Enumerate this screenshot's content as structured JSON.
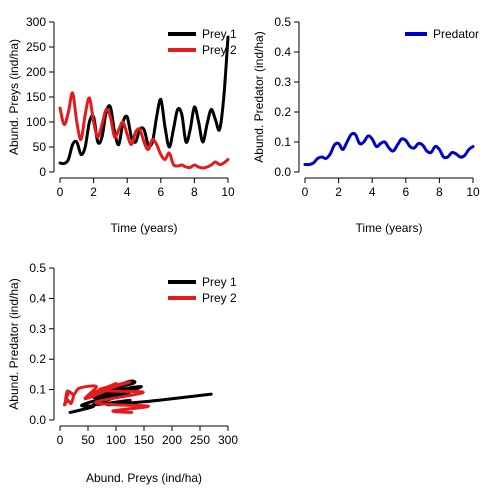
{
  "chart_data": [
    {
      "type": "line",
      "xlabel": "Time (years)",
      "ylabel": "Abund. Preys (ind/ha)",
      "xlim": [
        0,
        10
      ],
      "ylim": [
        0,
        300
      ],
      "x_ticks": [
        "0",
        "2",
        "4",
        "6",
        "8",
        "10"
      ],
      "y_ticks": [
        "0",
        "50",
        "100",
        "150",
        "200",
        "250",
        "300"
      ],
      "legend_position": "top-right",
      "series": [
        {
          "name": "Prey 1",
          "color": "#000000",
          "x": [
            0,
            0.25,
            0.5,
            0.75,
            1,
            1.25,
            1.5,
            1.75,
            2,
            2.25,
            2.5,
            2.75,
            3,
            3.25,
            3.5,
            3.75,
            4,
            4.25,
            4.5,
            4.75,
            5,
            5.25,
            5.5,
            5.75,
            6,
            6.25,
            6.5,
            6.75,
            7,
            7.25,
            7.5,
            7.75,
            8,
            8.25,
            8.5,
            8.75,
            9,
            9.25,
            9.5,
            9.75,
            10
          ],
          "y": [
            18,
            17,
            25,
            55,
            60,
            35,
            50,
            100,
            110,
            60,
            70,
            120,
            130,
            80,
            55,
            100,
            110,
            70,
            60,
            85,
            85,
            55,
            60,
            110,
            145,
            90,
            50,
            85,
            125,
            115,
            60,
            85,
            130,
            100,
            60,
            95,
            125,
            105,
            85,
            150,
            270
          ]
        },
        {
          "name": "Prey 2",
          "color": "#e41a1c",
          "x": [
            0,
            0.25,
            0.5,
            0.75,
            1,
            1.25,
            1.5,
            1.75,
            2,
            2.25,
            2.5,
            2.75,
            3,
            3.25,
            3.5,
            3.75,
            4,
            4.25,
            4.5,
            4.75,
            5,
            5.25,
            5.5,
            5.75,
            6,
            6.25,
            6.5,
            6.75,
            7,
            7.25,
            7.5,
            7.75,
            8,
            8.25,
            8.5,
            8.75,
            9,
            9.25,
            9.5,
            9.75,
            10
          ],
          "y": [
            128,
            95,
            120,
            158,
            100,
            65,
            115,
            148,
            100,
            70,
            95,
            125,
            110,
            70,
            85,
            100,
            75,
            55,
            80,
            85,
            60,
            45,
            65,
            55,
            35,
            25,
            38,
            15,
            12,
            14,
            10,
            9,
            14,
            10,
            8,
            10,
            14,
            20,
            15,
            18,
            25
          ]
        }
      ]
    },
    {
      "type": "line",
      "xlabel": "Time (years)",
      "ylabel": "Abund. Predator (ind/ha)",
      "xlim": [
        0,
        10
      ],
      "ylim": [
        0,
        0.5
      ],
      "x_ticks": [
        "0",
        "2",
        "4",
        "6",
        "8",
        "10"
      ],
      "y_ticks": [
        "0.0",
        "0.1",
        "0.2",
        "0.3",
        "0.4",
        "0.5"
      ],
      "legend_position": "top-right",
      "series": [
        {
          "name": "Predator",
          "color": "#0000cd",
          "x": [
            0,
            0.25,
            0.5,
            0.75,
            1,
            1.25,
            1.5,
            1.75,
            2,
            2.25,
            2.5,
            2.75,
            3,
            3.25,
            3.5,
            3.75,
            4,
            4.25,
            4.5,
            4.75,
            5,
            5.25,
            5.5,
            5.75,
            6,
            6.25,
            6.5,
            6.75,
            7,
            7.25,
            7.5,
            7.75,
            8,
            8.25,
            8.5,
            8.75,
            9,
            9.25,
            9.5,
            9.75,
            10
          ],
          "y": [
            0.025,
            0.025,
            0.03,
            0.045,
            0.05,
            0.045,
            0.06,
            0.09,
            0.095,
            0.075,
            0.1,
            0.125,
            0.125,
            0.095,
            0.1,
            0.12,
            0.11,
            0.085,
            0.095,
            0.1,
            0.08,
            0.07,
            0.09,
            0.11,
            0.105,
            0.085,
            0.08,
            0.095,
            0.09,
            0.07,
            0.065,
            0.085,
            0.075,
            0.05,
            0.05,
            0.065,
            0.06,
            0.05,
            0.055,
            0.075,
            0.085
          ]
        }
      ]
    },
    {
      "type": "line",
      "xlabel": "Abund. Preys (ind/ha)",
      "ylabel": "Abund. Predator (ind/ha)",
      "xlim": [
        0,
        300
      ],
      "ylim": [
        0,
        0.5
      ],
      "x_ticks": [
        "0",
        "50",
        "100",
        "150",
        "200",
        "250",
        "300"
      ],
      "y_ticks": [
        "0.0",
        "0.1",
        "0.2",
        "0.3",
        "0.4",
        "0.5"
      ],
      "legend_position": "top-right",
      "series": [
        {
          "name": "Prey 1",
          "color": "#000000",
          "x": [
            18,
            30,
            60,
            40,
            110,
            60,
            120,
            130,
            70,
            110,
            60,
            85,
            55,
            110,
            145,
            90,
            60,
            125,
            100,
            60,
            125,
            85,
            150,
            200,
            270
          ],
          "y": [
            0.025,
            0.03,
            0.045,
            0.05,
            0.09,
            0.075,
            0.125,
            0.12,
            0.095,
            0.11,
            0.085,
            0.1,
            0.08,
            0.09,
            0.11,
            0.095,
            0.08,
            0.095,
            0.075,
            0.05,
            0.065,
            0.05,
            0.06,
            0.07,
            0.085
          ]
        },
        {
          "name": "Prey 2",
          "color": "#e41a1c",
          "x": [
            128,
            95,
            158,
            100,
            65,
            148,
            100,
            70,
            125,
            70,
            100,
            55,
            85,
            45,
            65,
            35,
            25,
            15,
            12,
            10,
            14,
            8,
            14,
            20,
            25
          ],
          "y": [
            0.025,
            0.03,
            0.045,
            0.05,
            0.06,
            0.09,
            0.095,
            0.1,
            0.125,
            0.095,
            0.12,
            0.085,
            0.1,
            0.07,
            0.11,
            0.105,
            0.085,
            0.095,
            0.09,
            0.065,
            0.085,
            0.05,
            0.065,
            0.055,
            0.085
          ]
        }
      ]
    }
  ]
}
